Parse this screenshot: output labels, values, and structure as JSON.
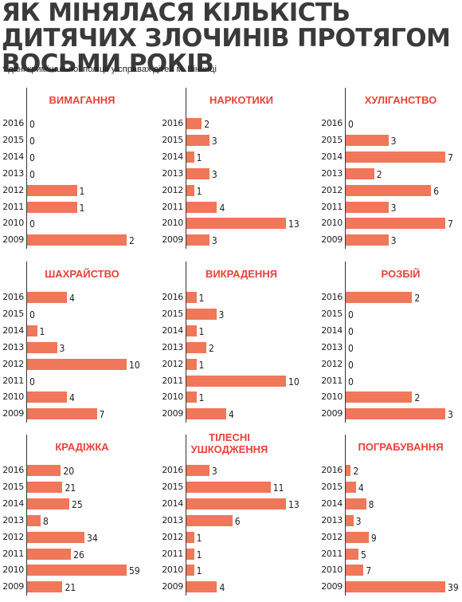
{
  "title": "ЯК МІНЯЛАСЯ КІЛЬКІСТЬ ДИТЯЧИХ ЗЛОЧИНІВ ПРОТЯГОМ ВОСЬМИ РОКІВ",
  "subtitle": "* дані кримінальної поліції у справах дітей м. Вінниці",
  "colors": {
    "bar": "#f0775a",
    "panel_title": "#e8423a",
    "title": "#3a3a3a"
  },
  "chart_data": [
    {
      "type": "bar",
      "title": "ВИМАГАННЯ",
      "categories": [
        "2016",
        "2015",
        "2014",
        "2013",
        "2012",
        "2011",
        "2010",
        "2009"
      ],
      "values": [
        0,
        0,
        0,
        0,
        1,
        1,
        0,
        2
      ]
    },
    {
      "type": "bar",
      "title": "НАРКОТИКИ",
      "categories": [
        "2016",
        "2015",
        "2014",
        "2013",
        "2012",
        "2011",
        "2010",
        "2009"
      ],
      "values": [
        2,
        3,
        1,
        3,
        1,
        4,
        13,
        3
      ]
    },
    {
      "type": "bar",
      "title": "ХУЛІГАНСТВО",
      "categories": [
        "2016",
        "2015",
        "2014",
        "2013",
        "2012",
        "2011",
        "2010",
        "2009"
      ],
      "values": [
        0,
        3,
        7,
        2,
        6,
        3,
        7,
        3
      ]
    },
    {
      "type": "bar",
      "title": "ШАХРАЙСТВО",
      "categories": [
        "2016",
        "2015",
        "2014",
        "2013",
        "2012",
        "2011",
        "2010",
        "2009"
      ],
      "values": [
        4,
        0,
        1,
        3,
        10,
        0,
        4,
        7
      ]
    },
    {
      "type": "bar",
      "title": "ВИКРАДЕННЯ",
      "categories": [
        "2016",
        "2015",
        "2014",
        "2013",
        "2012",
        "2011",
        "2010",
        "2009"
      ],
      "values": [
        1,
        3,
        1,
        2,
        1,
        10,
        1,
        4
      ]
    },
    {
      "type": "bar",
      "title": "РОЗБІЙ",
      "categories": [
        "2016",
        "2015",
        "2014",
        "2013",
        "2012",
        "2011",
        "2010",
        "2009"
      ],
      "values": [
        2,
        0,
        0,
        0,
        0,
        0,
        2,
        3
      ]
    },
    {
      "type": "bar",
      "title": "КРАДІЖКА",
      "categories": [
        "2016",
        "2015",
        "2014",
        "2013",
        "2012",
        "2011",
        "2010",
        "2009"
      ],
      "values": [
        20,
        21,
        25,
        8,
        34,
        26,
        59,
        21
      ]
    },
    {
      "type": "bar",
      "title": "ТІЛЕСНІ УШКОДЖЕННЯ",
      "categories": [
        "2016",
        "2015",
        "2014",
        "2013",
        "2012",
        "2011",
        "2010",
        "2009"
      ],
      "values": [
        3,
        11,
        13,
        6,
        1,
        1,
        1,
        4
      ]
    },
    {
      "type": "bar",
      "title": "ПОГРАБУВАННЯ",
      "categories": [
        "2016",
        "2015",
        "2014",
        "2013",
        "2012",
        "2011",
        "2010",
        "2009"
      ],
      "values": [
        2,
        4,
        8,
        3,
        9,
        5,
        7,
        39
      ]
    }
  ]
}
